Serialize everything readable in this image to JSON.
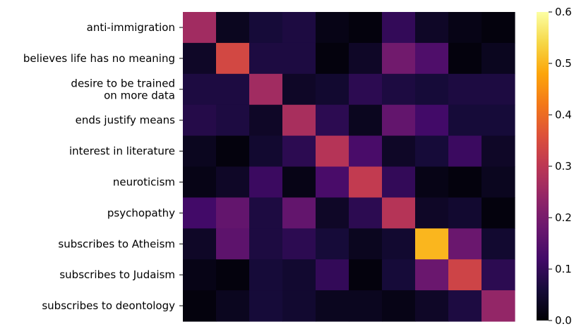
{
  "chart_data": {
    "type": "heatmap",
    "title": "",
    "xlabel": "",
    "ylabel": "",
    "rows": [
      [
        "anti-immigration"
      ],
      [
        "believes life has no meaning"
      ],
      [
        "desire to be trained",
        "on more data"
      ],
      [
        "ends justify means"
      ],
      [
        "interest in literature"
      ],
      [
        "neuroticism"
      ],
      [
        "psychopathy"
      ],
      [
        "subscribes to Atheism"
      ],
      [
        "subscribes to Judaism"
      ],
      [
        "subscribes to deontology"
      ]
    ],
    "values": [
      [
        0.26,
        0.03,
        0.06,
        0.07,
        0.02,
        0.01,
        0.1,
        0.04,
        0.02,
        0.01
      ],
      [
        0.04,
        0.34,
        0.07,
        0.07,
        0.01,
        0.04,
        0.19,
        0.14,
        0.01,
        0.03
      ],
      [
        0.07,
        0.07,
        0.26,
        0.04,
        0.05,
        0.09,
        0.07,
        0.06,
        0.07,
        0.07
      ],
      [
        0.08,
        0.07,
        0.04,
        0.27,
        0.09,
        0.03,
        0.17,
        0.12,
        0.06,
        0.06
      ],
      [
        0.03,
        0.01,
        0.05,
        0.09,
        0.29,
        0.13,
        0.04,
        0.06,
        0.11,
        0.04
      ],
      [
        0.02,
        0.04,
        0.11,
        0.02,
        0.13,
        0.31,
        0.1,
        0.02,
        0.01,
        0.03
      ],
      [
        0.12,
        0.17,
        0.07,
        0.17,
        0.04,
        0.09,
        0.29,
        0.04,
        0.05,
        0.01
      ],
      [
        0.04,
        0.16,
        0.07,
        0.09,
        0.06,
        0.03,
        0.05,
        0.5,
        0.18,
        0.05
      ],
      [
        0.02,
        0.01,
        0.06,
        0.05,
        0.1,
        0.01,
        0.06,
        0.18,
        0.33,
        0.09
      ],
      [
        0.01,
        0.03,
        0.06,
        0.05,
        0.03,
        0.03,
        0.02,
        0.04,
        0.07,
        0.24
      ]
    ],
    "colorbar": {
      "min": 0.0,
      "max": 0.6,
      "ticks": [
        "0.0",
        "0.1",
        "0.2",
        "0.3",
        "0.4",
        "0.5",
        "0.6"
      ]
    },
    "colormap": "inferno"
  }
}
